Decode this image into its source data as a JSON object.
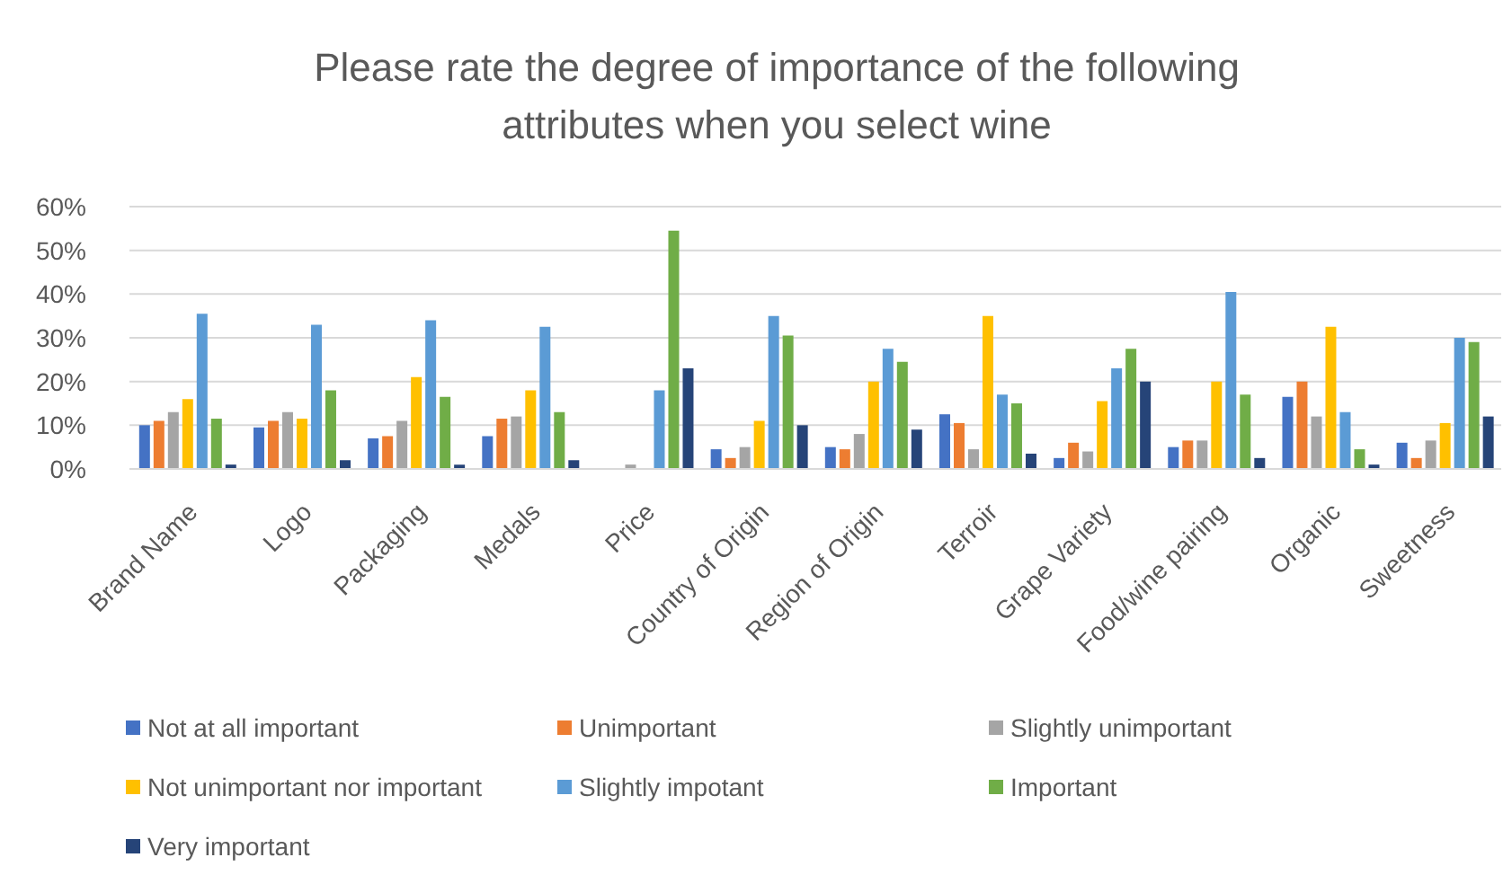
{
  "chart_data": {
    "type": "bar",
    "title": "Please rate the degree of importance of the following attributes when you select wine",
    "categories": [
      "Brand Name",
      "Logo",
      "Packaging",
      "Medals",
      "Price",
      "Country of Origin",
      "Region of Origin",
      "Terroir",
      "Grape Variety",
      "Food/wine pairing",
      "Organic",
      "Sweetness"
    ],
    "series": [
      {
        "name": "Not at all important",
        "color": "#4472c4",
        "values": [
          10,
          9.5,
          7,
          7.5,
          0,
          4.5,
          5,
          12.5,
          2.5,
          5,
          16.5,
          6
        ]
      },
      {
        "name": "Unimportant",
        "color": "#ed7d31",
        "values": [
          11,
          11,
          7.5,
          11.5,
          0,
          2.5,
          4.5,
          10.5,
          6,
          6.5,
          20,
          2.5
        ]
      },
      {
        "name": "Slightly unimportant",
        "color": "#a5a5a5",
        "values": [
          13,
          13,
          11,
          12,
          1,
          5,
          8,
          4.5,
          4,
          6.5,
          12,
          6.5
        ]
      },
      {
        "name": "Not unimportant nor important",
        "color": "#ffc000",
        "values": [
          16,
          11.5,
          21,
          18,
          0,
          11,
          20,
          35,
          15.5,
          20,
          32.5,
          10.5
        ]
      },
      {
        "name": "Slightly impotant",
        "color": "#5b9bd5",
        "values": [
          35.5,
          33,
          34,
          32.5,
          18,
          35,
          27.5,
          17,
          23,
          40.5,
          13,
          30
        ]
      },
      {
        "name": "Important",
        "color": "#70ad47",
        "values": [
          11.5,
          18,
          16.5,
          13,
          54.5,
          30.5,
          24.5,
          15,
          27.5,
          17,
          4.5,
          29
        ]
      },
      {
        "name": "Very important",
        "color": "#264478",
        "values": [
          1,
          2,
          1,
          2,
          23,
          10,
          9,
          3.5,
          20,
          2.5,
          1,
          12
        ]
      }
    ],
    "ylim": [
      0,
      60
    ],
    "yticks": [
      {
        "value": 0,
        "label": "0%"
      },
      {
        "value": 10,
        "label": "10%"
      },
      {
        "value": 20,
        "label": "20%"
      },
      {
        "value": 30,
        "label": "30%"
      },
      {
        "value": 40,
        "label": "40%"
      },
      {
        "value": 50,
        "label": "50%"
      },
      {
        "value": 60,
        "label": "60%"
      }
    ],
    "grid": "y",
    "legend": "bottom"
  }
}
